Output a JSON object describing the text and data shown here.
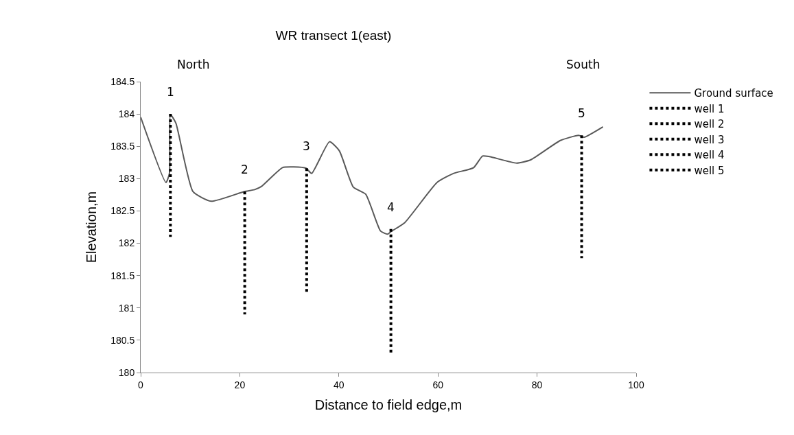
{
  "chart_data": {
    "type": "line",
    "title": "WR transect 1(east)",
    "xlabel": "Distance to field edge,m",
    "ylabel": "Elevation,m",
    "xlim": [
      0,
      100
    ],
    "xticks": [
      0,
      20,
      40,
      60,
      80,
      100
    ],
    "ylim": [
      180,
      184.5
    ],
    "yticks": [
      180,
      180.5,
      181,
      181.5,
      182,
      182.5,
      183,
      183.5,
      184,
      184.5
    ],
    "legend": "right",
    "marker": "none",
    "series": [
      {
        "name": "Ground surface",
        "color": "#595959",
        "line_style": "solid",
        "x": [
          0,
          5.1,
          5.8,
          6.0,
          7.1,
          10.55,
          14.2,
          20.9,
          23.0,
          24.4,
          28.6,
          30.9,
          33.4,
          34.5,
          38.1,
          40.1,
          42.9,
          45.4,
          48.4,
          49.8,
          50.5,
          53.3,
          59.8,
          63.1,
          67.2,
          69.0,
          70.4,
          75.9,
          78.7,
          84.7,
          88.4,
          89.5,
          93.3
        ],
        "values": [
          183.95,
          182.94,
          183.08,
          183.99,
          183.86,
          182.8,
          182.65,
          182.8,
          182.83,
          182.88,
          183.17,
          183.18,
          183.16,
          183.08,
          183.57,
          183.43,
          182.87,
          182.76,
          182.19,
          182.14,
          182.18,
          182.32,
          182.94,
          183.08,
          183.17,
          183.35,
          183.34,
          183.24,
          183.29,
          183.59,
          183.67,
          183.64,
          183.8
        ]
      },
      {
        "name": "well 1",
        "color": "#000000",
        "line_style": "dotted",
        "x": [
          6.0,
          6.0
        ],
        "values": [
          184.0,
          182.1
        ]
      },
      {
        "name": "well 2",
        "color": "#000000",
        "line_style": "dotted",
        "x": [
          21.0,
          21.0
        ],
        "values": [
          182.8,
          180.9
        ]
      },
      {
        "name": "well 3",
        "color": "#000000",
        "line_style": "dotted",
        "x": [
          33.5,
          33.5
        ],
        "values": [
          183.16,
          181.25
        ]
      },
      {
        "name": "well 4",
        "color": "#000000",
        "line_style": "dotted",
        "x": [
          50.5,
          50.5
        ],
        "values": [
          182.22,
          180.31
        ]
      },
      {
        "name": "well 5",
        "color": "#000000",
        "line_style": "dotted",
        "x": [
          89.0,
          89.0
        ],
        "values": [
          183.67,
          181.77
        ]
      }
    ],
    "annotations": [
      "North",
      "South",
      {
        "text": "1",
        "x": 6.0,
        "y": 184.0
      },
      {
        "text": "2",
        "x": 21.0,
        "y": 182.8
      },
      {
        "text": "3",
        "x": 33.5,
        "y": 183.16
      },
      {
        "text": "4",
        "x": 50.5,
        "y": 182.22
      },
      {
        "text": "5",
        "x": 89.0,
        "y": 183.67
      }
    ]
  }
}
